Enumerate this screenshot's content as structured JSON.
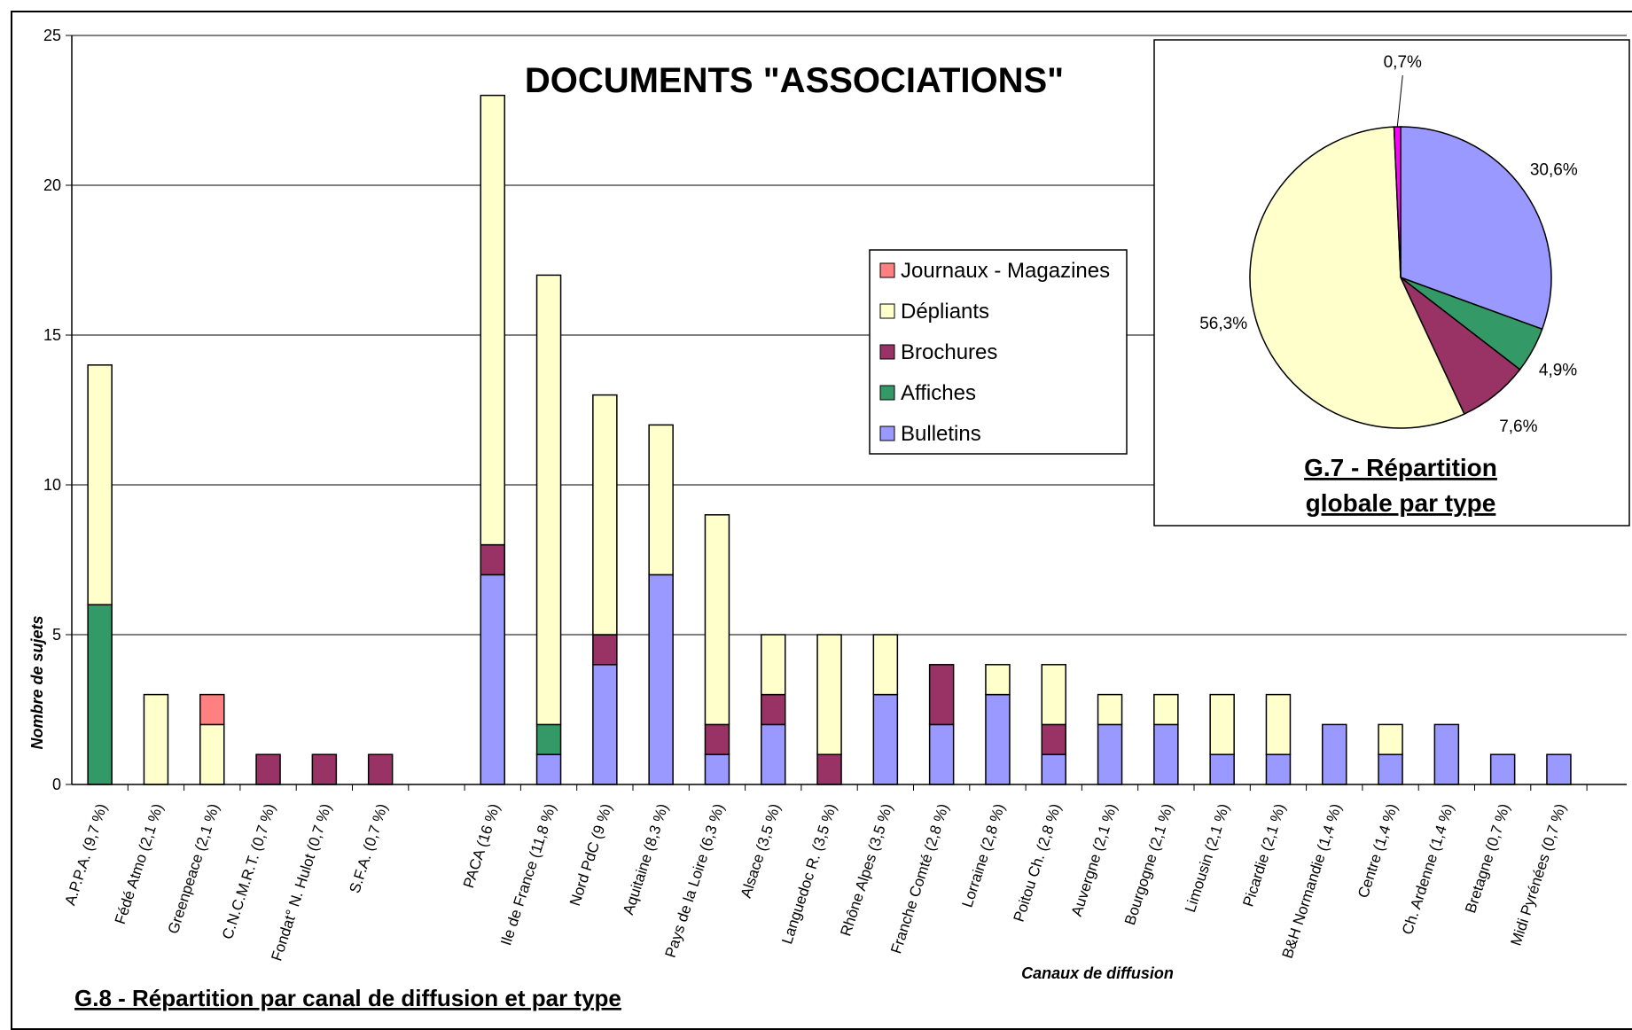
{
  "colors": {
    "journaux": "#ff8080",
    "depliants": "#ffffcc",
    "brochures": "#993366",
    "affiches": "#339966",
    "bulletins": "#9999ff",
    "pie_other": "#ff00ff"
  },
  "chart_data": [
    {
      "type": "bar",
      "stacked": true,
      "title": "DOCUMENTS \"ASSOCIATIONS\"",
      "caption": "G.8 - Répartition par canal de diffusion et par type",
      "xlabel": "Canaux de diffusion",
      "ylabel": "Nombre de sujets",
      "ylim": [
        0,
        25
      ],
      "yticks": [
        "0",
        "5",
        "10",
        "15",
        "20",
        "25"
      ],
      "grid": true,
      "legend_position": "top-right",
      "categories": [
        "A.P.P.A. (9,7 %)",
        "Fédé Atmo (2,1 %)",
        "Greenpeace (2,1 %)",
        "C.N.C.M.R.T. (0,7 %)",
        "Fondat° N. Hulot (0,7 %)",
        "S.F.A. (0,7 %)",
        "",
        "PACA (16 %)",
        "Ile de France (11,8 %)",
        "Nord PdC (9 %)",
        "Aquitaine (8,3 %)",
        "Pays de la Loire (6,3 %)",
        "Alsace (3,5 %)",
        "Languedoc R. (3,5 %)",
        "Rhône Alpes (3,5 %)",
        "Franche Comté (2,8 %)",
        "Lorraine (2,8 %)",
        "Poitou Ch. (2,8 %)",
        "Auvergne (2,1 %)",
        "Bourgogne (2,1 %)",
        "Limousin (2,1 %)",
        "Picardie (2,1 %)",
        "B&H Normandie (1,4 %)",
        "Centre (1,4 %)",
        "Ch. Ardenne (1,4 %)",
        "Bretagne (0,7 %)",
        "Midi Pyrénées (0,7 %)"
      ],
      "series": [
        {
          "name": "Bulletins",
          "color_key": "bulletins",
          "values": [
            0,
            0,
            0,
            0,
            0,
            0,
            0,
            7,
            1,
            4,
            7,
            1,
            2,
            0,
            3,
            2,
            3,
            1,
            2,
            2,
            1,
            1,
            2,
            1,
            2,
            1,
            1
          ]
        },
        {
          "name": "Affiches",
          "color_key": "affiches",
          "values": [
            6,
            0,
            0,
            0,
            0,
            0,
            0,
            0,
            1,
            0,
            0,
            0,
            0,
            0,
            0,
            0,
            0,
            0,
            0,
            0,
            0,
            0,
            0,
            0,
            0,
            0,
            0
          ]
        },
        {
          "name": "Brochures",
          "color_key": "brochures",
          "values": [
            0,
            0,
            0,
            1,
            1,
            1,
            0,
            1,
            0,
            1,
            0,
            1,
            1,
            1,
            0,
            2,
            0,
            1,
            0,
            0,
            0,
            0,
            0,
            0,
            0,
            0,
            0
          ]
        },
        {
          "name": "Dépliants",
          "color_key": "depliants",
          "values": [
            8,
            3,
            2,
            0,
            0,
            0,
            0,
            15,
            15,
            8,
            5,
            7,
            2,
            4,
            2,
            0,
            1,
            2,
            1,
            1,
            2,
            2,
            0,
            1,
            0,
            0,
            0
          ]
        },
        {
          "name": "Journaux - Magazines",
          "color_key": "journaux",
          "values": [
            0,
            0,
            1,
            0,
            0,
            0,
            0,
            0,
            0,
            0,
            0,
            0,
            0,
            0,
            0,
            0,
            0,
            0,
            0,
            0,
            0,
            0,
            0,
            0,
            0,
            0,
            0
          ]
        }
      ],
      "legend_order": [
        "Journaux - Magazines",
        "Dépliants",
        "Brochures",
        "Affiches",
        "Bulletins"
      ]
    },
    {
      "type": "pie",
      "caption_line1": "G.7 - Répartition",
      "caption_line2": "globale par type",
      "slices": [
        {
          "label": "30,6%",
          "value": 30.6,
          "color_key": "bulletins"
        },
        {
          "label": "4,9%",
          "value": 4.9,
          "color_key": "affiches"
        },
        {
          "label": "7,6%",
          "value": 7.6,
          "color_key": "brochures"
        },
        {
          "label": "56,3%",
          "value": 56.3,
          "color_key": "depliants"
        },
        {
          "label": "0,7%",
          "value": 0.7,
          "color_key": "pie_other"
        }
      ]
    }
  ]
}
